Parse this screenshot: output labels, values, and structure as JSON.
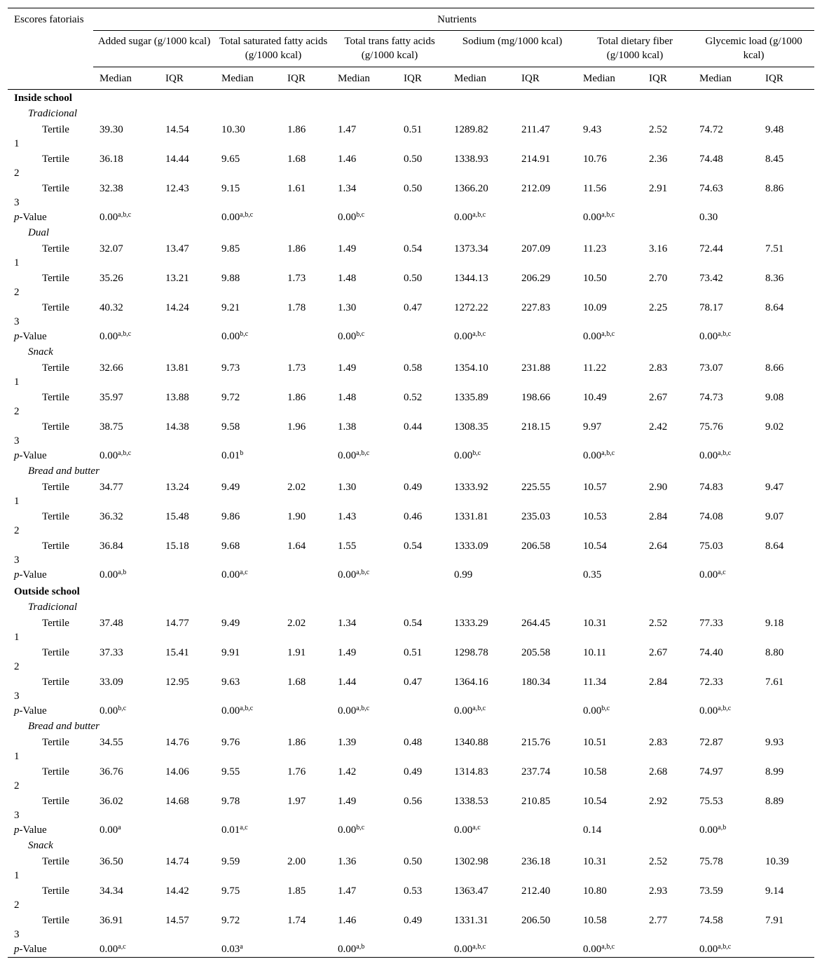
{
  "header": {
    "corner": "Escores fatoriais",
    "title": "Nutrients",
    "nutrients": [
      "Added sugar (g/1000 kcal)",
      "Total saturated fatty acids (g/1000 kcal)",
      "Total trans fatty acids (g/1000 kcal)",
      "Sodium (mg/1000 kcal)",
      "Total dietary fiber (g/1000 kcal)",
      "Glycemic load (g/1000 kcal)"
    ],
    "stats": [
      "Median",
      "IQR"
    ]
  },
  "sections": [
    {
      "title": "Inside school",
      "groups": [
        {
          "name": "Tradicional",
          "rows": [
            {
              "label": "Tertile 1",
              "values": [
                "39.30",
                "14.54",
                "10.30",
                "1.86",
                "1.47",
                "0.51",
                "1289.82",
                "211.47",
                "9.43",
                "2.52",
                "74.72",
                "9.48"
              ]
            },
            {
              "label": "Tertile 2",
              "values": [
                "36.18",
                "14.44",
                "9.65",
                "1.68",
                "1.46",
                "0.50",
                "1338.93",
                "214.91",
                "10.76",
                "2.36",
                "74.48",
                "8.45"
              ]
            },
            {
              "label": "Tertile 3",
              "values": [
                "32.38",
                "12.43",
                "9.15",
                "1.61",
                "1.34",
                "0.50",
                "1366.20",
                "212.09",
                "11.56",
                "2.91",
                "74.63",
                "8.86"
              ]
            }
          ],
          "pvalue": {
            "label": "p-Value",
            "values": [
              {
                "v": "0.00",
                "sup": "a,b,c"
              },
              {
                "v": "0.00",
                "sup": "a,b,c"
              },
              {
                "v": "0.00",
                "sup": "b,c"
              },
              {
                "v": "0.00",
                "sup": "a,b,c"
              },
              {
                "v": "0.00",
                "sup": "a,b,c"
              },
              {
                "v": "0.30"
              }
            ]
          }
        },
        {
          "name": "Dual",
          "rows": [
            {
              "label": "Tertile 1",
              "values": [
                "32.07",
                "13.47",
                "9.85",
                "1.86",
                "1.49",
                "0.54",
                "1373.34",
                "207.09",
                "11.23",
                "3.16",
                "72.44",
                "7.51"
              ]
            },
            {
              "label": "Tertile 2",
              "values": [
                "35.26",
                "13.21",
                "9.88",
                "1.73",
                "1.48",
                "0.50",
                "1344.13",
                "206.29",
                "10.50",
                "2.70",
                "73.42",
                "8.36"
              ]
            },
            {
              "label": "Tertile 3",
              "values": [
                "40.32",
                "14.24",
                "9.21",
                "1.78",
                "1.30",
                "0.47",
                "1272.22",
                "227.83",
                "10.09",
                "2.25",
                "78.17",
                "8.64"
              ]
            }
          ],
          "pvalue": {
            "label": "p-Value",
            "values": [
              {
                "v": "0.00",
                "sup": "a,b,c"
              },
              {
                "v": "0.00",
                "sup": "b,c"
              },
              {
                "v": "0.00",
                "sup": "b,c"
              },
              {
                "v": "0.00",
                "sup": "a,b,c"
              },
              {
                "v": "0.00",
                "sup": "a,b,c"
              },
              {
                "v": "0.00",
                "sup": "a,b,c"
              }
            ]
          }
        },
        {
          "name": "Snack",
          "rows": [
            {
              "label": "Tertile 1",
              "values": [
                "32.66",
                "13.81",
                "9.73",
                "1.73",
                "1.49",
                "0.58",
                "1354.10",
                "231.88",
                "11.22",
                "2.83",
                "73.07",
                "8.66"
              ]
            },
            {
              "label": "Tertile 2",
              "values": [
                "35.97",
                "13.88",
                "9.72",
                "1.86",
                "1.48",
                "0.52",
                "1335.89",
                "198.66",
                "10.49",
                "2.67",
                "74.73",
                "9.08"
              ]
            },
            {
              "label": "Tertile 3",
              "values": [
                "38.75",
                "14.38",
                "9.58",
                "1.96",
                "1.38",
                "0.44",
                "1308.35",
                "218.15",
                "9.97",
                "2.42",
                "75.76",
                "9.02"
              ]
            }
          ],
          "pvalue": {
            "label": "p-Value",
            "values": [
              {
                "v": "0.00",
                "sup": "a,b,c"
              },
              {
                "v": "0.01",
                "sup": "b"
              },
              {
                "v": "0.00",
                "sup": "a,b,c"
              },
              {
                "v": "0.00",
                "sup": "b,c"
              },
              {
                "v": "0.00",
                "sup": "a,b,c"
              },
              {
                "v": "0.00",
                "sup": "a,b,c"
              }
            ]
          }
        },
        {
          "name": "Bread and butter",
          "rows": [
            {
              "label": "Tertile 1",
              "values": [
                "34.77",
                "13.24",
                "9.49",
                "2.02",
                "1.30",
                "0.49",
                "1333.92",
                "225.55",
                "10.57",
                "2.90",
                "74.83",
                "9.47"
              ]
            },
            {
              "label": "Tertile 2",
              "values": [
                "36.32",
                "15.48",
                "9.86",
                "1.90",
                "1.43",
                "0.46",
                "1331.81",
                "235.03",
                "10.53",
                "2.84",
                "74.08",
                "9.07"
              ]
            },
            {
              "label": "Tertile 3",
              "values": [
                "36.84",
                "15.18",
                "9.68",
                "1.64",
                "1.55",
                "0.54",
                "1333.09",
                "206.58",
                "10.54",
                "2.64",
                "75.03",
                "8.64"
              ]
            }
          ],
          "pvalue": {
            "label": "p-Value",
            "values": [
              {
                "v": "0.00",
                "sup": "a,b"
              },
              {
                "v": "0.00",
                "sup": "a,c"
              },
              {
                "v": "0.00",
                "sup": "a,b,c"
              },
              {
                "v": "0.99"
              },
              {
                "v": "0.35"
              },
              {
                "v": "0.00",
                "sup": "a,c"
              }
            ]
          }
        }
      ]
    },
    {
      "title": "Outside school",
      "groups": [
        {
          "name": "Tradicional",
          "rows": [
            {
              "label": "Tertile 1",
              "values": [
                "37.48",
                "14.77",
                "9.49",
                "2.02",
                "1.34",
                "0.54",
                "1333.29",
                "264.45",
                "10.31",
                "2.52",
                "77.33",
                "9.18"
              ]
            },
            {
              "label": "Tertile 2",
              "values": [
                "37.33",
                "15.41",
                "9.91",
                "1.91",
                "1.49",
                "0.51",
                "1298.78",
                "205.58",
                "10.11",
                "2.67",
                "74.40",
                "8.80"
              ]
            },
            {
              "label": "Tertile 3",
              "values": [
                "33.09",
                "12.95",
                "9.63",
                "1.68",
                "1.44",
                "0.47",
                "1364.16",
                "180.34",
                "11.34",
                "2.84",
                "72.33",
                "7.61"
              ]
            }
          ],
          "pvalue": {
            "label": "p-Value",
            "values": [
              {
                "v": "0.00",
                "sup": "b,c"
              },
              {
                "v": "0.00",
                "sup": "a,b,c"
              },
              {
                "v": "0.00",
                "sup": "a,b,c"
              },
              {
                "v": "0.00",
                "sup": "a,b,c"
              },
              {
                "v": "0.00",
                "sup": "b,c"
              },
              {
                "v": "0.00",
                "sup": "a,b,c"
              }
            ]
          }
        },
        {
          "name": "Bread and butter",
          "rows": [
            {
              "label": "Tertile 1",
              "values": [
                "34.55",
                "14.76",
                "9.76",
                "1.86",
                "1.39",
                "0.48",
                "1340.88",
                "215.76",
                "10.51",
                "2.83",
                "72.87",
                "9.93"
              ]
            },
            {
              "label": "Tertile 2",
              "values": [
                "36.76",
                "14.06",
                "9.55",
                "1.76",
                "1.42",
                "0.49",
                "1314.83",
                "237.74",
                "10.58",
                "2.68",
                "74.97",
                "8.99"
              ]
            },
            {
              "label": "Tertile 3",
              "values": [
                "36.02",
                "14.68",
                "9.78",
                "1.97",
                "1.49",
                "0.56",
                "1338.53",
                "210.85",
                "10.54",
                "2.92",
                "75.53",
                "8.89"
              ]
            }
          ],
          "pvalue": {
            "label": "p-Value",
            "values": [
              {
                "v": "0.00",
                "sup": "a"
              },
              {
                "v": "0.01",
                "sup": "a,c"
              },
              {
                "v": "0.00",
                "sup": "b,c"
              },
              {
                "v": "0.00",
                "sup": "a,c"
              },
              {
                "v": "0.14"
              },
              {
                "v": "0.00",
                "sup": "a,b"
              }
            ]
          }
        },
        {
          "name": "Snack",
          "rows": [
            {
              "label": "Tertile 1",
              "values": [
                "36.50",
                "14.74",
                "9.59",
                "2.00",
                "1.36",
                "0.50",
                "1302.98",
                "236.18",
                "10.31",
                "2.52",
                "75.78",
                "10.39"
              ]
            },
            {
              "label": "Tertile 2",
              "values": [
                "34.34",
                "14.42",
                "9.75",
                "1.85",
                "1.47",
                "0.53",
                "1363.47",
                "212.40",
                "10.80",
                "2.93",
                "73.59",
                "9.14"
              ]
            },
            {
              "label": "Tertile 3",
              "values": [
                "36.91",
                "14.57",
                "9.72",
                "1.74",
                "1.46",
                "0.49",
                "1331.31",
                "206.50",
                "10.58",
                "2.77",
                "74.58",
                "7.91"
              ]
            }
          ],
          "pvalue": {
            "label": "p-Value",
            "values": [
              {
                "v": "0.00",
                "sup": "a,c"
              },
              {
                "v": "0.03",
                "sup": "a"
              },
              {
                "v": "0.00",
                "sup": "a,b"
              },
              {
                "v": "0.00",
                "sup": "a,b,c"
              },
              {
                "v": "0.00",
                "sup": "a,b,c"
              },
              {
                "v": "0.00",
                "sup": "a,b,c"
              }
            ]
          }
        }
      ]
    }
  ]
}
